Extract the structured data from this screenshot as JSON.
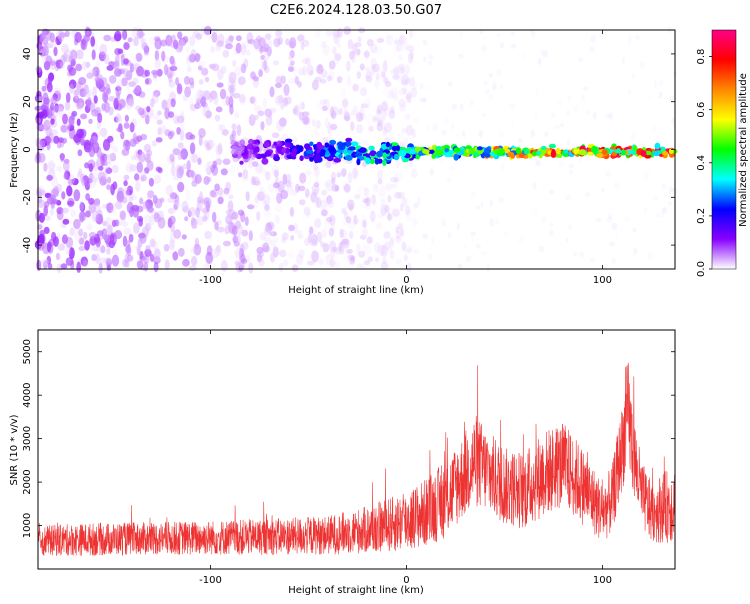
{
  "page_title": "C2E6.2024.128.03.50.G07",
  "chart_data": [
    {
      "type": "heatmap",
      "xlabel": "Height of straight line (km)",
      "ylabel": "Frequency (Hz)",
      "xlim": [
        -188,
        137
      ],
      "ylim": [
        -50,
        50
      ],
      "x_ticks": [
        -100,
        0,
        100
      ],
      "x_tick_labels": [
        "-100",
        "0",
        "100"
      ],
      "y_ticks": [
        -40,
        -20,
        0,
        20,
        40
      ],
      "y_tick_labels": [
        "-40",
        "-20",
        "0",
        "20",
        "40"
      ],
      "colorbar": {
        "label": "Normalized spectral amplitude",
        "range": [
          0,
          0.9
        ],
        "ticks": [
          0,
          0.2,
          0.4,
          0.6,
          0.8
        ],
        "tick_labels": [
          "0.0",
          "0.2",
          "0.4",
          "0.6",
          "0.8"
        ],
        "colormap": [
          "#ffffff",
          "#8800ff",
          "#0000ff",
          "#00ffff",
          "#00ff00",
          "#ffff00",
          "#ff8800",
          "#ff0000",
          "#ff0088"
        ]
      },
      "features": {
        "noise_band": {
          "x_range": [
            -188,
            5
          ],
          "y_range": [
            -50,
            50
          ],
          "typical_amplitude": 0.05
        },
        "sparse_noise": {
          "x_range": [
            5,
            137
          ],
          "y_range": [
            -50,
            50
          ],
          "typical_amplitude": 0.01
        },
        "signal_trace": {
          "x_range": [
            -88,
            137
          ],
          "center_frequency": -1,
          "amplitude_range": [
            0.1,
            0.9
          ]
        }
      }
    },
    {
      "type": "line",
      "xlabel": "Height of straight line (km)",
      "ylabel": "SNR (10 * v/v)",
      "xlim": [
        -188,
        137
      ],
      "ylim": [
        0,
        5500
      ],
      "x_ticks": [
        -100,
        0,
        100
      ],
      "x_tick_labels": [
        "-100",
        "0",
        "100"
      ],
      "y_ticks": [
        1000,
        2000,
        3000,
        4000,
        5000
      ],
      "y_tick_labels": [
        "1000",
        "2000",
        "3000",
        "4000",
        "5000"
      ],
      "color": "#ee3333",
      "envelope": {
        "x": [
          -188,
          -160,
          -130,
          -100,
          -70,
          -40,
          -20,
          0,
          10,
          20,
          30,
          35,
          40,
          50,
          60,
          70,
          80,
          90,
          100,
          105,
          110,
          113,
          116,
          120,
          125,
          130,
          137
        ],
        "mean": [
          650,
          680,
          700,
          720,
          740,
          780,
          900,
          1100,
          1300,
          1600,
          2200,
          2500,
          2300,
          1900,
          1800,
          2200,
          2400,
          1900,
          1300,
          1600,
          2800,
          3600,
          2600,
          1700,
          1300,
          1400,
          1500
        ],
        "half_spread": [
          350,
          380,
          380,
          400,
          420,
          450,
          550,
          700,
          800,
          900,
          1000,
          1100,
          1000,
          900,
          900,
          1000,
          1000,
          900,
          700,
          800,
          1000,
          1300,
          1000,
          800,
          700,
          800,
          900
        ]
      }
    }
  ]
}
